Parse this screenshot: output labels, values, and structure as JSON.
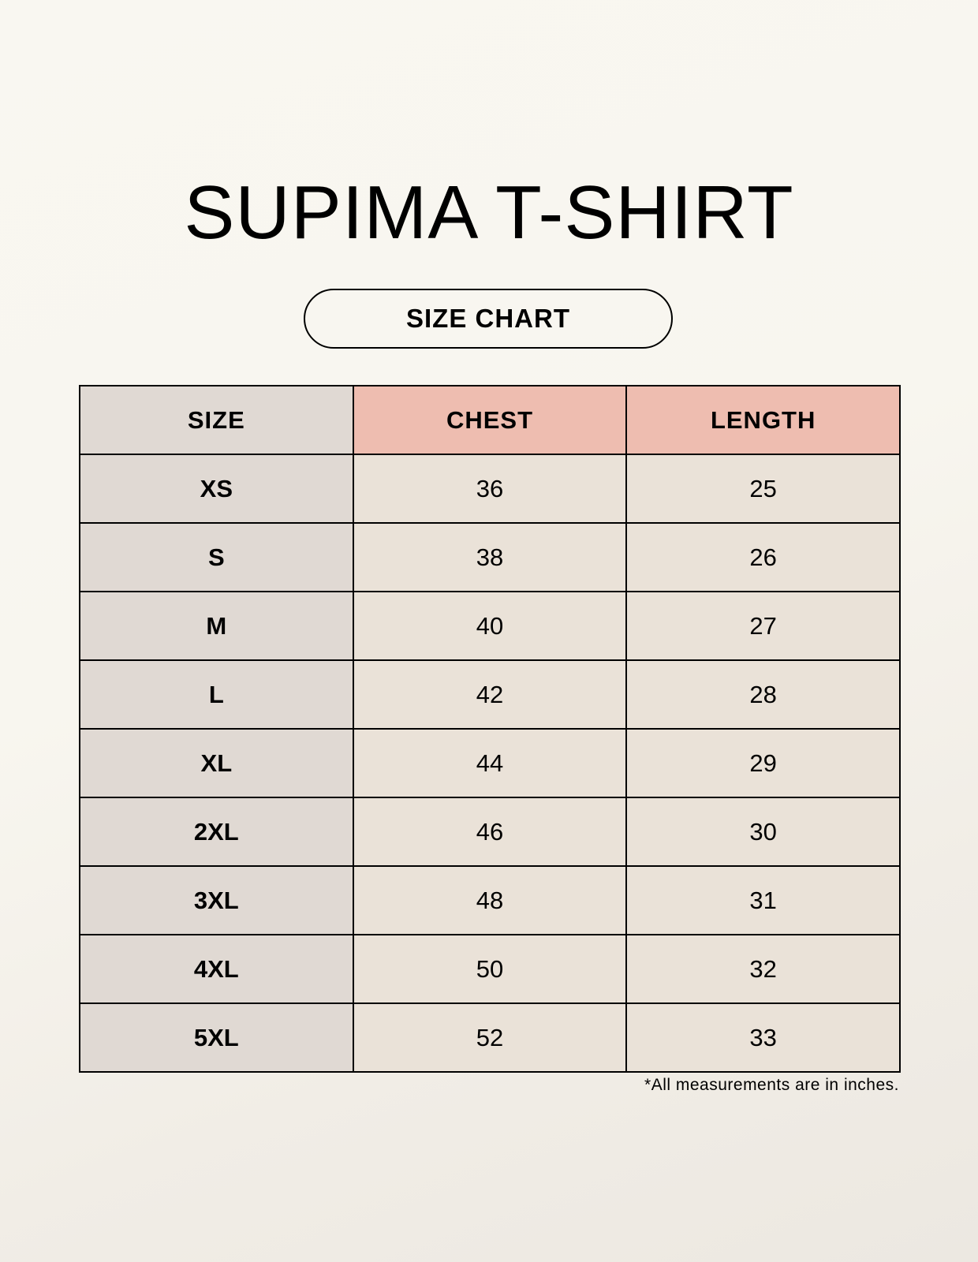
{
  "title": "SUPIMA T-SHIRT",
  "subtitle": "SIZE CHART",
  "table": {
    "headers": [
      "SIZE",
      "CHEST",
      "LENGTH"
    ],
    "rows": [
      [
        "XS",
        "36",
        "25"
      ],
      [
        "S",
        "38",
        "26"
      ],
      [
        "M",
        "40",
        "27"
      ],
      [
        "L",
        "42",
        "28"
      ],
      [
        "XL",
        "44",
        "29"
      ],
      [
        "2XL",
        "46",
        "30"
      ],
      [
        "3XL",
        "48",
        "31"
      ],
      [
        "4XL",
        "50",
        "32"
      ],
      [
        "5XL",
        "52",
        "33"
      ]
    ]
  },
  "footnote": "*All measurements are in inches.",
  "colors": {
    "size_column": "#e0d9d3",
    "header_accent": "#eebdb0",
    "cell": "#eae2d8"
  }
}
